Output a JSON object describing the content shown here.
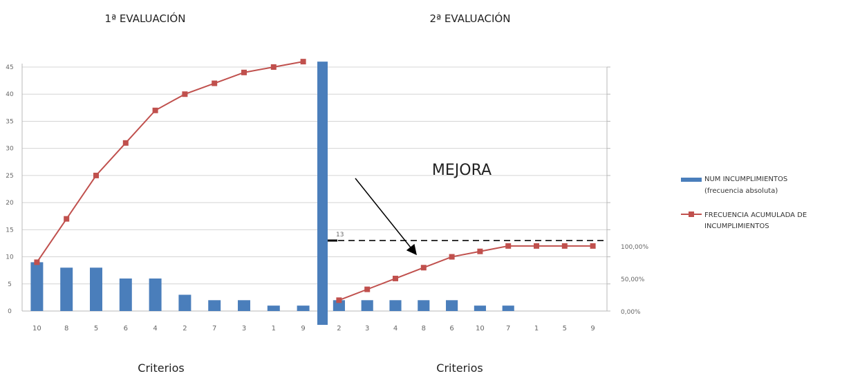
{
  "chart_data": [
    {
      "type": "bar",
      "title": "1ª EVALUACIÓN",
      "xlabel": "Criterios",
      "ylim": [
        0,
        45
      ],
      "y_ticks": [
        "0",
        "5",
        "10",
        "15",
        "20",
        "25",
        "30",
        "35",
        "40",
        "45"
      ],
      "grid": true,
      "categories": [
        "10",
        "8",
        "5",
        "6",
        "4",
        "2",
        "7",
        "3",
        "1",
        "9"
      ],
      "series": [
        {
          "name": "NUM INCUMPLIMIENTOS (frecuencia absoluta)",
          "type": "bar",
          "values": [
            9,
            8,
            8,
            6,
            6,
            3,
            2,
            2,
            1,
            1
          ]
        },
        {
          "name": "FRECUENCIA ACUMULADA DE INCUMPLIMIENTOS",
          "type": "line",
          "values": [
            9,
            17,
            25,
            31,
            37,
            40,
            42,
            44,
            45,
            46
          ]
        }
      ]
    },
    {
      "type": "bar",
      "title": "2ª EVALUACIÓN",
      "xlabel": "Criterios",
      "ylim": [
        0,
        45
      ],
      "y2_ticks": [
        "0,00%",
        "50,00%",
        "100,00%"
      ],
      "grid": true,
      "categories": [
        "2",
        "3",
        "4",
        "8",
        "6",
        "10",
        "7",
        "1",
        "5",
        "9"
      ],
      "series": [
        {
          "name": "NUM INCUMPLIMIENTOS (frecuencia absoluta)",
          "type": "bar",
          "values": [
            2,
            2,
            2,
            2,
            2,
            1,
            1,
            0,
            0,
            0
          ]
        },
        {
          "name": "FRECUENCIA ACUMULADA DE INCUMPLIMIENTOS",
          "type": "line",
          "values": [
            2,
            4,
            6,
            8,
            10,
            11,
            12,
            12,
            12,
            12
          ]
        }
      ],
      "reference_line": {
        "value": 13,
        "label": "13",
        "style": "dashed"
      },
      "annotation": "MEJORA"
    }
  ],
  "separator_bar_value": 46,
  "legend": {
    "placement": "right",
    "items": [
      {
        "line1": "NUM INCUMPLIMIENTOS",
        "line2": "(frecuencia absoluta)",
        "color": "#4a7ebb",
        "marker": "bar"
      },
      {
        "line1": "FRECUENCIA ACUMULADA DE",
        "line2": "INCUMPLIMIENTOS",
        "color": "#c0504d",
        "marker": "line-square"
      }
    ]
  },
  "colors": {
    "bar": "#4a7ebb",
    "line": "#c0504d",
    "grid": "#d4d4d4",
    "reference": "#333333"
  }
}
